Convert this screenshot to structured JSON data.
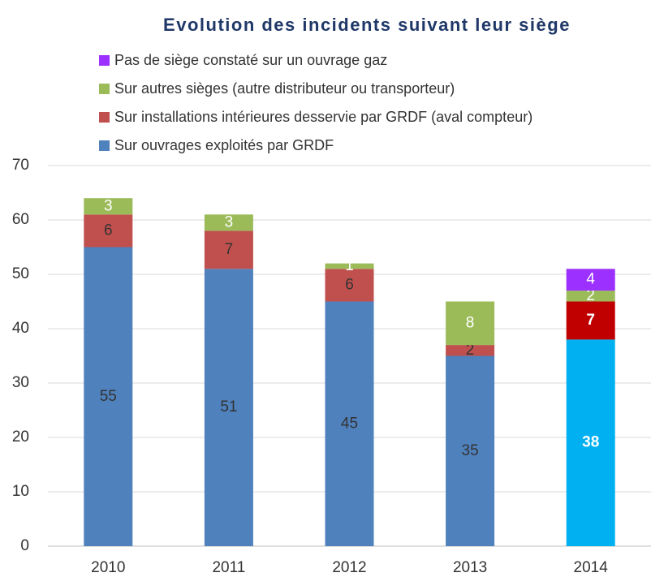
{
  "chart_data": {
    "type": "stacked_bar",
    "title": "Evolution des incidents suivant leur siège",
    "categories": [
      "2010",
      "2011",
      "2012",
      "2013",
      "2014"
    ],
    "series": [
      {
        "name": "Sur ouvrages exploités par GRDF",
        "color": "#4f81bd",
        "label_color": "#333333",
        "colors": [
          "#4f81bd",
          "#4f81bd",
          "#4f81bd",
          "#4f81bd",
          "#00b0f0"
        ],
        "values": [
          55,
          51,
          45,
          35,
          38
        ]
      },
      {
        "name": "Sur installations intérieures desservie par GRDF (aval compteur)",
        "color": "#c0504d",
        "label_color": "#333333",
        "colors": [
          "#c0504d",
          "#c0504d",
          "#c0504d",
          "#c0504d",
          "#c00000"
        ],
        "values": [
          6,
          7,
          6,
          2,
          7
        ]
      },
      {
        "name": "Sur autres sièges (autre distributeur ou transporteur)",
        "color": "#9bbb59",
        "label_color": "#ffffff",
        "colors": [
          "#9bbb59",
          "#9bbb59",
          "#9bbb59",
          "#9bbb59",
          "#9bbb59"
        ],
        "values": [
          3,
          3,
          1,
          8,
          2
        ]
      },
      {
        "name": "Pas de siège constaté sur un ouvrage gaz",
        "color": "#9b30ff",
        "label_color": "#ffffff",
        "colors": [
          "#9b30ff",
          "#9b30ff",
          "#9b30ff",
          "#9b30ff",
          "#9b30ff"
        ],
        "values": [
          null,
          null,
          null,
          null,
          4
        ]
      }
    ],
    "ylim": [
      0,
      70
    ],
    "yticks": [
      0,
      10,
      20,
      30,
      40,
      50,
      60,
      70
    ],
    "grid": true,
    "legend": "top"
  }
}
